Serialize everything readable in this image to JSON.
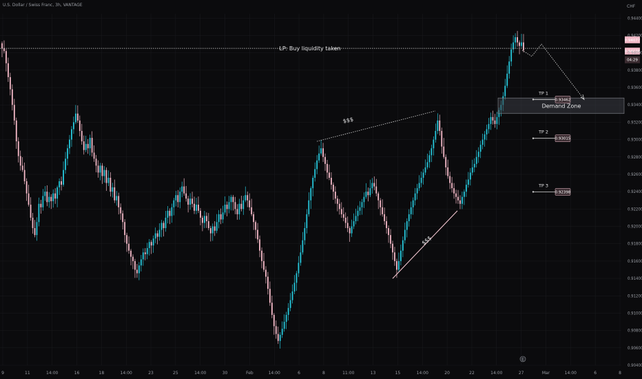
{
  "header": {
    "symbol": "U.S. Dollar / Swiss Franc, 3h, VANTAGE"
  },
  "axis_currency": "CHF",
  "axis_currency_sub": "",
  "colors": {
    "bg": "#0b0b0d",
    "up": "#26c6da",
    "down": "#f2b8c6",
    "grid": "#1a1b1f",
    "text": "#9a9da4",
    "annot": "#e8e8ea",
    "tp_box": "#c9a3ad"
  },
  "chart_data": {
    "type": "candlestick",
    "title": "",
    "ylim": [
      0.904,
      0.9445
    ],
    "y_ticks": [
      "0.94400",
      "0.94200",
      "0.94000",
      "0.93800",
      "0.93600",
      "0.93400",
      "0.93200",
      "0.93000",
      "0.92800",
      "0.92600",
      "0.92400",
      "0.92200",
      "0.92000",
      "0.91800",
      "0.91600",
      "0.91400",
      "0.91200",
      "0.91000",
      "0.90800",
      "0.90600",
      "0.90400"
    ],
    "x_ticks": [
      "9",
      "11",
      "14:00",
      "16",
      "18",
      "14:00",
      "23",
      "25",
      "14:00",
      "30",
      "Feb",
      "14:00",
      "6",
      "8",
      "11:00",
      "13",
      "15",
      "14:00",
      "20",
      "22",
      "14:00",
      "27",
      "Mar",
      "14:00",
      "6",
      "8"
    ],
    "close_series": [
      0.9405,
      0.9402,
      0.9388,
      0.9372,
      0.9358,
      0.934,
      0.9322,
      0.9298,
      0.9281,
      0.927,
      0.9265,
      0.9252,
      0.9238,
      0.9225,
      0.921,
      0.9198,
      0.919,
      0.9205,
      0.9226,
      0.9222,
      0.9235,
      0.924,
      0.9228,
      0.9234,
      0.9229,
      0.9238,
      0.9232,
      0.9245,
      0.9252,
      0.9248,
      0.9265,
      0.9278,
      0.929,
      0.93,
      0.9312,
      0.932,
      0.933,
      0.9322,
      0.931,
      0.9298,
      0.9288,
      0.9295,
      0.929,
      0.9302,
      0.9285,
      0.9278,
      0.927,
      0.9262,
      0.927,
      0.9258,
      0.9265,
      0.925,
      0.9256,
      0.924,
      0.9245,
      0.923,
      0.9235,
      0.9222,
      0.9215,
      0.9205,
      0.919,
      0.918,
      0.9172,
      0.9165,
      0.916,
      0.915,
      0.9146,
      0.9155,
      0.9162,
      0.917,
      0.9168,
      0.9175,
      0.9182,
      0.9178,
      0.9186,
      0.9192,
      0.9188,
      0.9196,
      0.9204,
      0.9198,
      0.921,
      0.9218,
      0.9212,
      0.9222,
      0.923,
      0.9236,
      0.9228,
      0.924,
      0.9246,
      0.9238,
      0.9232,
      0.9225,
      0.9232,
      0.9226,
      0.9218,
      0.9225,
      0.9218,
      0.921,
      0.9204,
      0.9212,
      0.9206,
      0.9198,
      0.9192,
      0.92,
      0.9195,
      0.9205,
      0.9214,
      0.9208,
      0.9216,
      0.9225,
      0.922,
      0.9228,
      0.9234,
      0.9228,
      0.922,
      0.9214,
      0.9226,
      0.922,
      0.923,
      0.9236,
      0.923,
      0.9222,
      0.9214,
      0.9205,
      0.9196,
      0.9185,
      0.9172,
      0.916,
      0.915,
      0.9142,
      0.9128,
      0.9112,
      0.9098,
      0.9085,
      0.9076,
      0.9068,
      0.9075,
      0.9082,
      0.909,
      0.9098,
      0.9106,
      0.9115,
      0.9125,
      0.9135,
      0.9146,
      0.9158,
      0.917,
      0.9184,
      0.9198,
      0.9214,
      0.923,
      0.9244,
      0.9256,
      0.9266,
      0.9276,
      0.9284,
      0.929,
      0.928,
      0.9272,
      0.9262,
      0.9256,
      0.9248,
      0.924,
      0.9232,
      0.9226,
      0.922,
      0.9214,
      0.921,
      0.9204,
      0.9198,
      0.9192,
      0.92,
      0.9206,
      0.9212,
      0.9218,
      0.9222,
      0.9228,
      0.9234,
      0.924,
      0.9236,
      0.9244,
      0.925,
      0.9246,
      0.9238,
      0.923,
      0.9222,
      0.9214,
      0.9206,
      0.9198,
      0.919,
      0.918,
      0.917,
      0.916,
      0.915,
      0.916,
      0.9172,
      0.9184,
      0.9196,
      0.9206,
      0.9214,
      0.9222,
      0.923,
      0.9238,
      0.9244,
      0.925,
      0.9256,
      0.9262,
      0.9268,
      0.9274,
      0.9282,
      0.929,
      0.93,
      0.931,
      0.9322,
      0.931,
      0.9292,
      0.928,
      0.9268,
      0.9258,
      0.925,
      0.9244,
      0.9238,
      0.9234,
      0.923,
      0.9226,
      0.9234,
      0.924,
      0.9248,
      0.9254,
      0.9262,
      0.9268,
      0.9272,
      0.928,
      0.9286,
      0.9294,
      0.93,
      0.9306,
      0.9312,
      0.9318,
      0.9326,
      0.9322,
      0.9318,
      0.9326,
      0.9334,
      0.934,
      0.935,
      0.9362,
      0.9376,
      0.939,
      0.9404,
      0.9412,
      0.9418,
      0.9412,
      0.9408,
      0.9412,
      0.9403
    ],
    "last_price": "0.94077",
    "bid_price": "0.94038",
    "countdown": "04:29"
  },
  "annotations": {
    "liquidity_label": "LP: Buy liquidity taken",
    "demand_zone_label": "Demand Zone",
    "dollar_label_top": "$$$",
    "dollar_label_bottom": "$$$",
    "tp1_label": "TP 1",
    "tp1_value": "0.93462",
    "tp2_label": "TP 2",
    "tp2_value": "0.93015",
    "tp3_label": "TP 3",
    "tp3_value": "0.92398",
    "event_marker": "E"
  }
}
